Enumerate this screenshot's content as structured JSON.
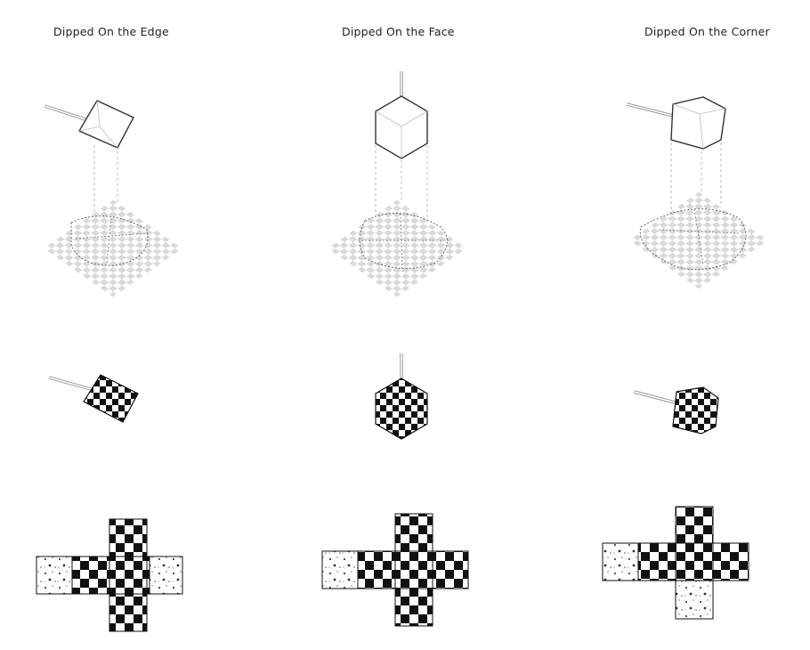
{
  "columns": [
    {
      "title": "Dipped On the Edge"
    },
    {
      "title": "Dipped On the Face"
    },
    {
      "title": "Dipped On the Corner"
    }
  ],
  "colors": {
    "ink": "#111111",
    "check_gray": "#d9d9d9",
    "guide": "#9a9a9a"
  }
}
